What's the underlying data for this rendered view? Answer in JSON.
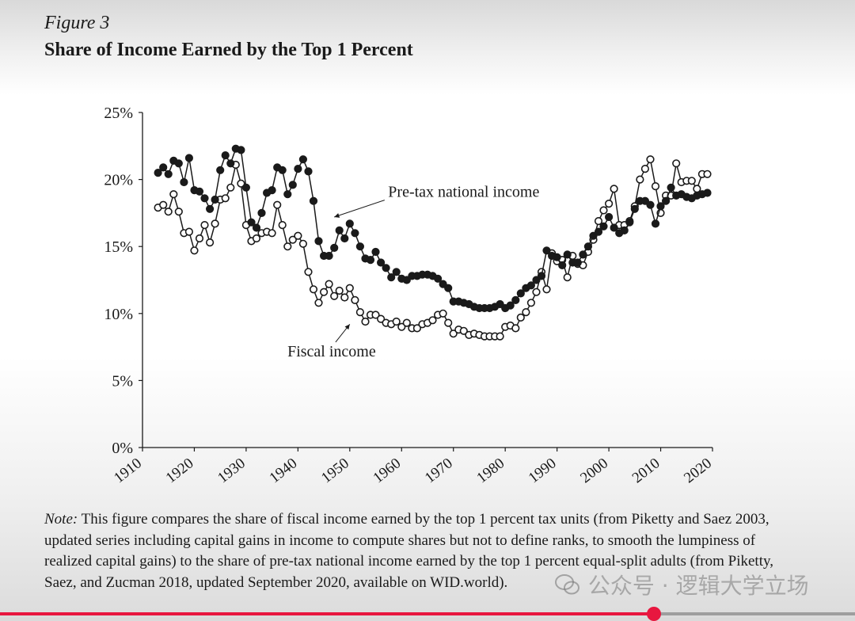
{
  "figure_label": "Figure 3",
  "title": "Share of Income Earned by the Top 1 Percent",
  "note": {
    "label": "Note:",
    "text": " This figure compares the share of fiscal income earned by the top 1 percent tax units (from Piketty and Saez 2003, updated series including capital gains in income to compute shares but not to define ranks, to smooth the lumpiness of realized capital gains) to the share of pre-tax national income earned by the top 1 percent equal-split adults (from Piketty, Saez, and Zucman 2018, updated September 2020, available on WID.world)."
  },
  "watermark": {
    "text": "公众号 · 逻辑大学立场",
    "icon": "wechat-icon"
  },
  "video_progress": 0.765,
  "colors": {
    "progress": "#e8173f",
    "track": "#9e9e9e",
    "series_filled": "#1a1a1a",
    "series_open": "#ffffff"
  },
  "chart_data": {
    "type": "line",
    "title": "Share of Income Earned by the Top 1 Percent",
    "xlabel": "",
    "ylabel": "",
    "xlim": [
      1910,
      2020
    ],
    "ylim": [
      0,
      25
    ],
    "xticks": [
      1910,
      1920,
      1930,
      1940,
      1950,
      1960,
      1970,
      1980,
      1990,
      2000,
      2010,
      2020
    ],
    "yticks": [
      0,
      5,
      10,
      15,
      20,
      25
    ],
    "ytick_labels": [
      "0%",
      "5%",
      "10%",
      "15%",
      "20%",
      "25%"
    ],
    "grid": false,
    "legend": "none",
    "annotations": [
      {
        "text": "Pre-tax national income",
        "points_to": [
          1947,
          17.2
        ],
        "label_at": [
          1972,
          18.7
        ]
      },
      {
        "text": "Fiscal income",
        "points_to": [
          1950,
          9.2
        ],
        "label_at": [
          1946.5,
          6.8
        ]
      }
    ],
    "series": [
      {
        "name": "Pre-tax national income",
        "marker": "filled",
        "x": [
          1913,
          1914,
          1915,
          1916,
          1917,
          1918,
          1919,
          1920,
          1921,
          1922,
          1923,
          1924,
          1925,
          1926,
          1927,
          1928,
          1929,
          1930,
          1931,
          1932,
          1933,
          1934,
          1935,
          1936,
          1937,
          1938,
          1939,
          1940,
          1941,
          1942,
          1943,
          1944,
          1945,
          1946,
          1947,
          1948,
          1949,
          1950,
          1951,
          1952,
          1953,
          1954,
          1955,
          1956,
          1957,
          1958,
          1959,
          1960,
          1961,
          1962,
          1963,
          1964,
          1965,
          1966,
          1967,
          1968,
          1969,
          1970,
          1971,
          1972,
          1973,
          1974,
          1975,
          1976,
          1977,
          1978,
          1979,
          1980,
          1981,
          1982,
          1983,
          1984,
          1985,
          1986,
          1987,
          1988,
          1989,
          1990,
          1991,
          1992,
          1993,
          1994,
          1995,
          1996,
          1997,
          1998,
          1999,
          2000,
          2001,
          2002,
          2003,
          2004,
          2005,
          2006,
          2007,
          2008,
          2009,
          2010,
          2011,
          2012,
          2013,
          2014,
          2015,
          2016,
          2017,
          2018,
          2019
        ],
        "y": [
          20.5,
          20.9,
          20.4,
          21.4,
          21.2,
          19.8,
          21.6,
          19.2,
          19.1,
          18.6,
          17.8,
          18.5,
          20.7,
          21.8,
          21.2,
          22.3,
          22.2,
          19.4,
          16.8,
          16.4,
          17.5,
          19.0,
          19.2,
          20.9,
          20.7,
          18.9,
          19.6,
          20.8,
          21.5,
          20.6,
          18.4,
          15.4,
          14.3,
          14.3,
          14.9,
          16.2,
          15.6,
          16.7,
          16.0,
          15.0,
          14.1,
          14.0,
          14.6,
          13.8,
          13.4,
          12.7,
          13.1,
          12.6,
          12.5,
          12.8,
          12.8,
          12.9,
          12.9,
          12.8,
          12.6,
          12.2,
          11.9,
          10.9,
          10.9,
          10.8,
          10.7,
          10.5,
          10.4,
          10.4,
          10.4,
          10.5,
          10.7,
          10.4,
          10.6,
          11.0,
          11.5,
          11.9,
          12.1,
          12.5,
          12.8,
          14.7,
          14.3,
          14.2,
          13.6,
          14.4,
          13.8,
          13.8,
          14.4,
          15.0,
          15.8,
          16.1,
          16.5,
          17.2,
          16.4,
          16.0,
          16.2,
          16.8,
          17.8,
          18.4,
          18.4,
          18.1,
          16.7,
          18.0,
          18.4,
          19.4,
          18.8,
          18.9,
          18.7,
          18.6,
          18.8,
          18.9,
          19.0
        ]
      },
      {
        "name": "Fiscal income",
        "marker": "open",
        "x": [
          1913,
          1914,
          1915,
          1916,
          1917,
          1918,
          1919,
          1920,
          1921,
          1922,
          1923,
          1924,
          1925,
          1926,
          1927,
          1928,
          1929,
          1930,
          1931,
          1932,
          1933,
          1934,
          1935,
          1936,
          1937,
          1938,
          1939,
          1940,
          1941,
          1942,
          1943,
          1944,
          1945,
          1946,
          1947,
          1948,
          1949,
          1950,
          1951,
          1952,
          1953,
          1954,
          1955,
          1956,
          1957,
          1958,
          1959,
          1960,
          1961,
          1962,
          1963,
          1964,
          1965,
          1966,
          1967,
          1968,
          1969,
          1970,
          1971,
          1972,
          1973,
          1974,
          1975,
          1976,
          1977,
          1978,
          1979,
          1980,
          1981,
          1982,
          1983,
          1984,
          1985,
          1986,
          1987,
          1988,
          1989,
          1990,
          1991,
          1992,
          1993,
          1994,
          1995,
          1996,
          1997,
          1998,
          1999,
          2000,
          2001,
          2002,
          2003,
          2004,
          2005,
          2006,
          2007,
          2008,
          2009,
          2010,
          2011,
          2012,
          2013,
          2014,
          2015,
          2016,
          2017,
          2018,
          2019
        ],
        "y": [
          17.9,
          18.1,
          17.6,
          18.9,
          17.6,
          16.0,
          16.1,
          14.7,
          15.6,
          16.6,
          15.3,
          16.7,
          18.5,
          18.6,
          19.4,
          21.1,
          19.7,
          16.6,
          15.4,
          15.6,
          16.0,
          16.1,
          16.0,
          18.1,
          16.6,
          15.0,
          15.5,
          15.8,
          15.2,
          13.1,
          11.8,
          10.8,
          11.6,
          12.2,
          11.3,
          11.7,
          11.2,
          11.9,
          11.0,
          10.1,
          9.4,
          9.9,
          9.9,
          9.6,
          9.3,
          9.2,
          9.4,
          9.0,
          9.3,
          8.9,
          8.9,
          9.2,
          9.3,
          9.5,
          9.9,
          10.0,
          9.3,
          8.5,
          8.8,
          8.7,
          8.4,
          8.5,
          8.4,
          8.3,
          8.3,
          8.3,
          8.3,
          9.0,
          9.1,
          8.9,
          9.7,
          10.1,
          10.8,
          11.6,
          13.1,
          11.8,
          14.5,
          13.9,
          14.0,
          12.7,
          14.3,
          13.7,
          13.6,
          14.6,
          15.5,
          16.9,
          17.7,
          18.2,
          19.3,
          16.6,
          16.6,
          16.9,
          18.0,
          20.0,
          20.8,
          21.5,
          19.5,
          17.5,
          18.8,
          18.8,
          21.2,
          19.8,
          19.9,
          19.9,
          19.3,
          20.4,
          20.4
        ]
      }
    ]
  }
}
